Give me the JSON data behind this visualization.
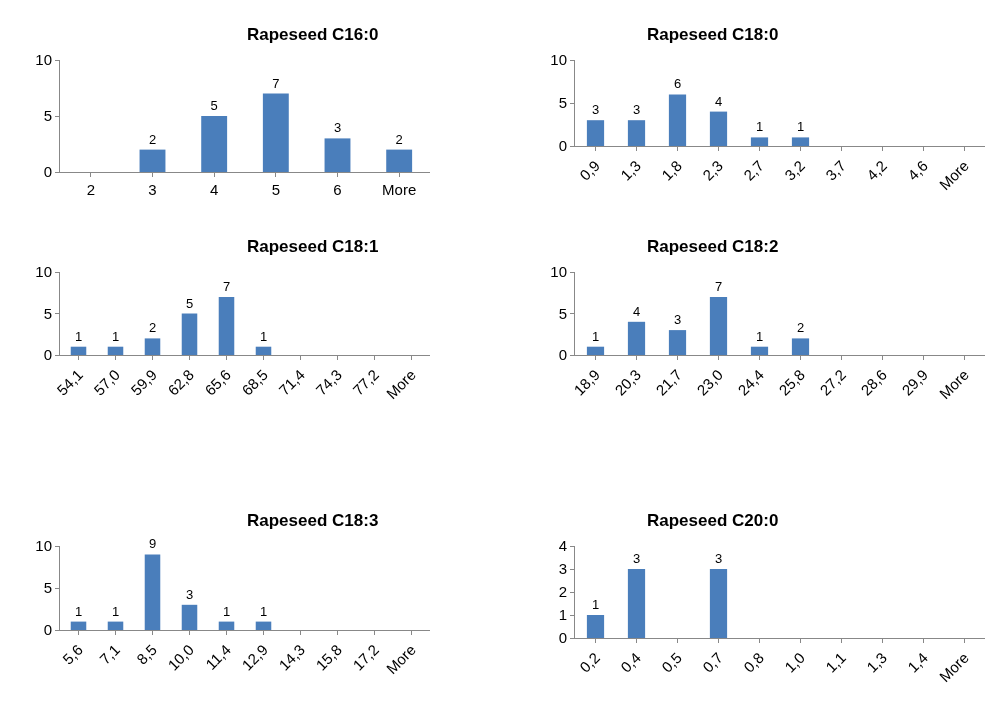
{
  "chart_data": [
    {
      "type": "bar",
      "title": "Rapeseed C16:0",
      "categories": [
        "2",
        "3",
        "4",
        "5",
        "6",
        "More"
      ],
      "values": [
        0,
        2,
        5,
        7,
        3,
        2
      ],
      "value_labels": [
        null,
        "2",
        "5",
        "7",
        "3",
        "2"
      ],
      "color": "#4a7ebb",
      "ylim": [
        0,
        10
      ],
      "yticks": [
        0,
        5,
        10
      ],
      "grid": false,
      "legend": false
    },
    {
      "type": "bar",
      "title": "Rapeseed C18:0",
      "categories": [
        "0,9",
        "1,3",
        "1,8",
        "2,3",
        "2,7",
        "3,2",
        "3,7",
        "4,2",
        "4,6",
        "More"
      ],
      "values": [
        3,
        3,
        6,
        4,
        1,
        1,
        0,
        0,
        0,
        0
      ],
      "value_labels": [
        "3",
        "3",
        "6",
        "4",
        "1",
        "1",
        null,
        null,
        null,
        null
      ],
      "color": "#4a7ebb",
      "ylim": [
        0,
        10
      ],
      "yticks": [
        0,
        5,
        10
      ],
      "grid": false,
      "legend": false
    },
    {
      "type": "bar",
      "title": "Rapeseed C18:1",
      "categories": [
        "54,1",
        "57,0",
        "59,9",
        "62,8",
        "65,6",
        "68,5",
        "71,4",
        "74,3",
        "77,2",
        "More"
      ],
      "values": [
        1,
        1,
        2,
        5,
        7,
        1,
        0,
        0,
        0,
        0
      ],
      "value_labels": [
        "1",
        "1",
        "2",
        "5",
        "7",
        "1",
        null,
        null,
        null,
        null
      ],
      "color": "#4a7ebb",
      "ylim": [
        0,
        10
      ],
      "yticks": [
        0,
        5,
        10
      ],
      "grid": false,
      "legend": false
    },
    {
      "type": "bar",
      "title": "Rapeseed C18:2",
      "categories": [
        "18,9",
        "20,3",
        "21,7",
        "23,0",
        "24,4",
        "25,8",
        "27,2",
        "28,6",
        "29,9",
        "More"
      ],
      "values": [
        1,
        4,
        3,
        7,
        1,
        2,
        0,
        0,
        0,
        0
      ],
      "value_labels": [
        "1",
        "4",
        "3",
        "7",
        "1",
        "2",
        null,
        null,
        null,
        null
      ],
      "color": "#4a7ebb",
      "ylim": [
        0,
        10
      ],
      "yticks": [
        0,
        5,
        10
      ],
      "grid": false,
      "legend": false
    },
    {
      "type": "bar",
      "title": "Rapeseed C18:3",
      "categories": [
        "5,6",
        "7,1",
        "8,5",
        "10,0",
        "11,4",
        "12,9",
        "14,3",
        "15,8",
        "17,2",
        "More"
      ],
      "values": [
        1,
        1,
        9,
        3,
        1,
        1,
        0,
        0,
        0,
        0
      ],
      "value_labels": [
        "1",
        "1",
        "9",
        "3",
        "1",
        "1",
        null,
        null,
        null,
        null
      ],
      "color": "#4a7ebb",
      "ylim": [
        0,
        10
      ],
      "yticks": [
        0,
        5,
        10
      ],
      "grid": false,
      "legend": false
    },
    {
      "type": "bar",
      "title": "Rapeseed C20:0",
      "categories": [
        "0,2",
        "0,4",
        "0,5",
        "0,7",
        "0,8",
        "1,0",
        "1,1",
        "1,3",
        "1,4",
        "More"
      ],
      "values": [
        1,
        3,
        0,
        3,
        0,
        0,
        0,
        0,
        0,
        0
      ],
      "value_labels": [
        "1",
        "3",
        null,
        "3",
        null,
        null,
        null,
        null,
        null,
        null
      ],
      "color": "#4a7ebb",
      "ylim": [
        0,
        4
      ],
      "yticks": [
        0,
        1,
        2,
        3,
        4
      ],
      "legend": false
    }
  ]
}
